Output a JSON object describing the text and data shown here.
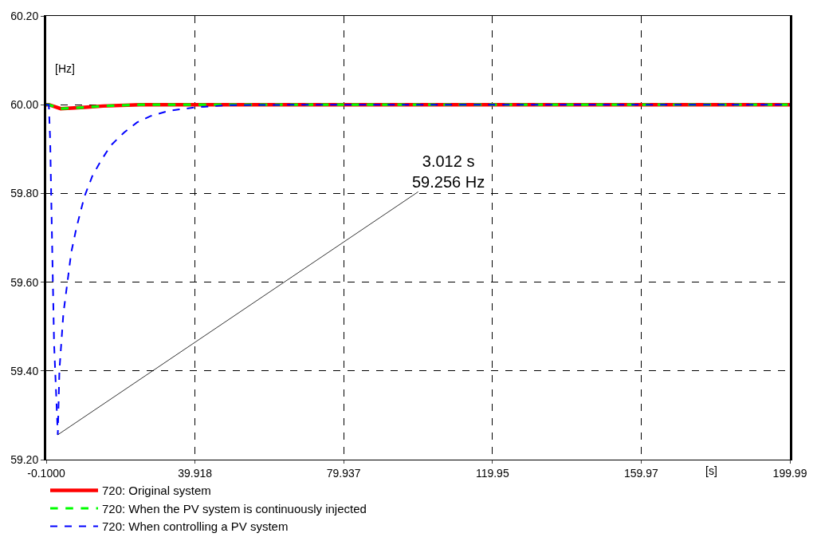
{
  "chart_data": {
    "type": "line",
    "xlabel": "[s]",
    "ylabel": "[Hz]",
    "xlim": [
      -0.1,
      199.99
    ],
    "ylim": [
      59.2,
      60.2
    ],
    "xticks": [
      {
        "value": -0.1,
        "label": "-0.1000"
      },
      39.918,
      79.937,
      119.95,
      159.97,
      199.99
    ],
    "yticks": [
      {
        "value": 59.2,
        "label": "59.20"
      },
      {
        "value": 59.4,
        "label": "59.40"
      },
      {
        "value": 59.6,
        "label": "59.60"
      },
      {
        "value": 59.8,
        "label": "59.80"
      },
      {
        "value": 60,
        "label": "60.00"
      },
      {
        "value": 60.2,
        "label": "60.20"
      }
    ],
    "grid": true,
    "legend": "bottom left",
    "marker": "none",
    "series": [
      {
        "name": "720: Original system",
        "color": "#ff0000",
        "line_style": "solid",
        "x": [
          -0.1,
          0.6,
          3.8,
          10.2,
          15.2,
          25.1,
          199.99
        ],
        "values": [
          60,
          60,
          59.991,
          59.994,
          59.997,
          60,
          60
        ]
      },
      {
        "name": "720: When the PV system is continuously injected",
        "color": "#00ff00",
        "line_style": "dashed",
        "x": [
          -0.1,
          0.6,
          3.8,
          10.2,
          15.2,
          25.1,
          199.99
        ],
        "values": [
          60,
          60,
          59.991,
          59.994,
          59.997,
          60,
          60
        ]
      },
      {
        "name": "720: When controlling a PV system",
        "color": "#0000ff",
        "line_style": "dashed",
        "x": [
          -0.1,
          0.6,
          0.96,
          1.54,
          2.02,
          3.012,
          3.45,
          4.51,
          5.57,
          6.63,
          8.06,
          10.18,
          12.3,
          14.43,
          17.25,
          20.8,
          24.33,
          27.87,
          32.82,
          39.92,
          49.1,
          70,
          199.99
        ],
        "values": [
          60,
          60,
          59.92,
          59.661,
          59.46,
          59.256,
          59.402,
          59.529,
          59.598,
          59.667,
          59.724,
          59.793,
          59.839,
          59.871,
          59.908,
          59.937,
          59.96,
          59.974,
          59.986,
          59.994,
          59.999,
          60,
          60
        ]
      }
    ],
    "annotations": [
      {
        "text": "3.012 s\n59.256 Hz",
        "x": 3.012,
        "y": 59.256
      }
    ]
  }
}
